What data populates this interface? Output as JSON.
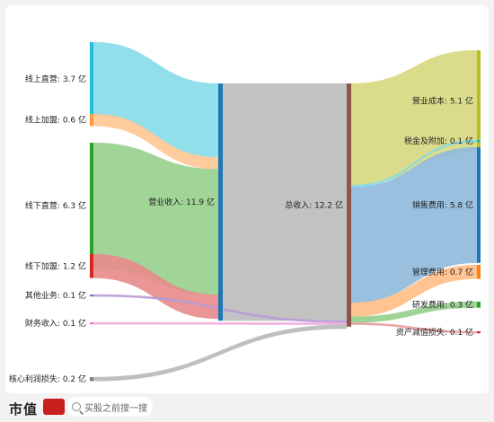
{
  "chart_data": {
    "type": "sankey",
    "unit": "亿",
    "nodes": [
      {
        "id": "online_direct",
        "label": "线上直营: 3.7 亿",
        "value": 3.7,
        "color": "#22bfd6",
        "flow": "#86dcea"
      },
      {
        "id": "online_franchise",
        "label": "线上加盟: 0.6 亿",
        "value": 0.6,
        "color": "#ff9a3c",
        "flow": "#ffc693"
      },
      {
        "id": "offline_direct",
        "label": "线下直营: 6.3 亿",
        "value": 6.3,
        "color": "#2ca02c",
        "flow": "#97d08d"
      },
      {
        "id": "offline_franchise",
        "label": "线下加盟: 1.2 亿",
        "value": 1.2,
        "color": "#d62728",
        "flow": "#e88b8b"
      },
      {
        "id": "other_business",
        "label": "其他业务: 0.1 亿",
        "value": 0.1,
        "color": "#9467bd",
        "flow": "#b89ad8"
      },
      {
        "id": "finance_income",
        "label": "财务收入: 0.1 亿",
        "value": 0.1,
        "color": "#e377c2",
        "flow": "#f2a8dc"
      },
      {
        "id": "core_profit_loss",
        "label": "核心利润损失: 0.2 亿",
        "value": 0.2,
        "color": "#7f7f7f",
        "flow": "#b8b8b8"
      },
      {
        "id": "operating_income",
        "label": "营业收入: 11.9 亿",
        "value": 11.9,
        "color": "#1f77b4"
      },
      {
        "id": "total_income",
        "label": "总收入: 12.2 亿",
        "value": 12.2,
        "color": "#8c564b"
      },
      {
        "id": "operating_cost",
        "label": "营业成本: 5.1 亿",
        "value": 5.1,
        "color": "#bcbd22",
        "flow": "#d7d87e"
      },
      {
        "id": "taxes",
        "label": "税金及附加: 0.1 亿",
        "value": 0.1,
        "color": "#17becf",
        "flow": "#7fdbe6"
      },
      {
        "id": "selling_expense",
        "label": "销售费用: 5.8 亿",
        "value": 5.8,
        "color": "#1f77b4",
        "flow": "#8fb9dd"
      },
      {
        "id": "admin_expense",
        "label": "管理费用: 0.7 亿",
        "value": 0.7,
        "color": "#ff7f0e",
        "flow": "#ffbe86"
      },
      {
        "id": "rd_expense",
        "label": "研发费用: 0.3 亿",
        "value": 0.3,
        "color": "#2ca02c",
        "flow": "#95cf8c"
      },
      {
        "id": "impairment_loss",
        "label": "资产减值损失: 0.1 亿",
        "value": 0.1,
        "color": "#d62728",
        "flow": "#ea9a9a"
      }
    ],
    "links": [
      {
        "source": "online_direct",
        "target": "operating_income",
        "value": 3.7
      },
      {
        "source": "online_franchise",
        "target": "operating_income",
        "value": 0.6
      },
      {
        "source": "offline_direct",
        "target": "operating_income",
        "value": 6.3
      },
      {
        "source": "offline_franchise",
        "target": "operating_income",
        "value": 1.2
      },
      {
        "source": "operating_income",
        "target": "total_income",
        "value": 11.9
      },
      {
        "source": "other_business",
        "target": "total_income",
        "value": 0.1
      },
      {
        "source": "finance_income",
        "target": "total_income",
        "value": 0.1
      },
      {
        "source": "core_profit_loss",
        "target": "total_income",
        "value": 0.2
      },
      {
        "source": "total_income",
        "target": "operating_cost",
        "value": 5.1
      },
      {
        "source": "total_income",
        "target": "taxes",
        "value": 0.1
      },
      {
        "source": "total_income",
        "target": "selling_expense",
        "value": 5.8
      },
      {
        "source": "total_income",
        "target": "admin_expense",
        "value": 0.7
      },
      {
        "source": "total_income",
        "target": "rd_expense",
        "value": 0.3
      },
      {
        "source": "total_income",
        "target": "impairment_loss",
        "value": 0.1
      }
    ]
  },
  "footer": {
    "brand": "市值",
    "logo_text": "风云",
    "search_placeholder": "买股之前搜一搜"
  }
}
